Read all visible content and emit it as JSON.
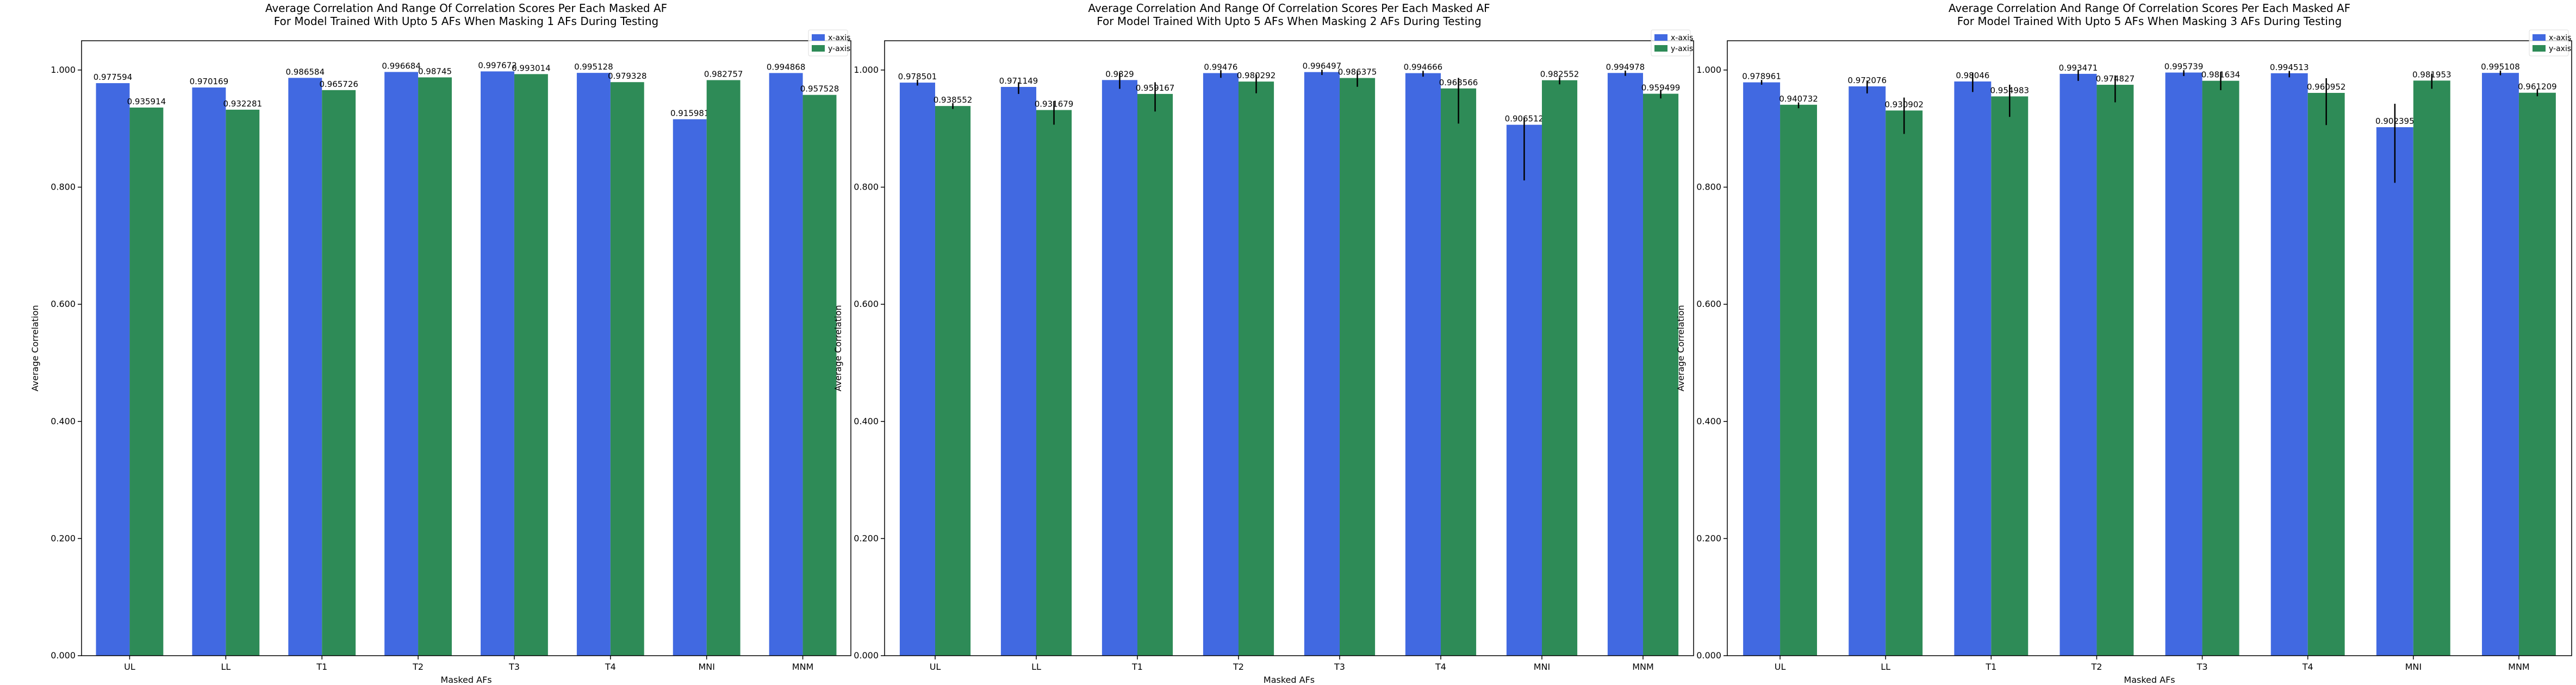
{
  "colors": {
    "x_axis_bar": "#4169e1",
    "y_axis_bar": "#2e8b57",
    "error_bar": "#000000",
    "background": "#ffffff"
  },
  "chart_data": [
    {
      "type": "bar",
      "title": "Average Correlation And Range Of Correlation Scores Per Each Masked AF",
      "subtitle": "For Model Trained With Upto 5 AFs When Masking 1 AFs During Testing",
      "xlabel": "Masked AFs",
      "ylabel": "Average Correlation",
      "ylim": [
        0,
        1.05
      ],
      "yticks": [
        "0.000",
        "0.200",
        "0.400",
        "0.600",
        "0.800",
        "1.000"
      ],
      "grid": false,
      "legend_position": "top-right",
      "categories": [
        "UL",
        "LL",
        "T1",
        "T2",
        "T3",
        "T4",
        "MNI",
        "MNM"
      ],
      "series": [
        {
          "name": "x-axis",
          "color": "#4169e1",
          "values": [
            0.977594,
            0.970169,
            0.986584,
            0.996684,
            0.997672,
            0.995128,
            0.915981,
            0.994868
          ],
          "labels": [
            "0.977594",
            "0.970169",
            "0.986584",
            "0.996684",
            "0.997672",
            "0.995128",
            "0.915981",
            "0.994868"
          ],
          "err_low": [
            0,
            0,
            0,
            0,
            0,
            0,
            0,
            0
          ],
          "err_high": [
            0,
            0,
            0,
            0,
            0,
            0,
            0,
            0
          ]
        },
        {
          "name": "y-axis",
          "color": "#2e8b57",
          "values": [
            0.935914,
            0.932281,
            0.965726,
            0.98745,
            0.993014,
            0.979328,
            0.982757,
            0.957528
          ],
          "labels": [
            "0.935914",
            "0.932281",
            "0.965726",
            "0.98745",
            "0.993014",
            "0.979328",
            "0.982757",
            "0.957528"
          ],
          "err_low": [
            0,
            0,
            0,
            0,
            0,
            0,
            0,
            0
          ],
          "err_high": [
            0,
            0,
            0,
            0,
            0,
            0,
            0,
            0
          ]
        }
      ]
    },
    {
      "type": "bar",
      "title": "Average Correlation And Range Of Correlation Scores Per Each Masked AF",
      "subtitle": "For Model Trained With Upto 5 AFs When Masking 2 AFs During Testing",
      "xlabel": "Masked AFs",
      "ylabel": "Average Correlation",
      "ylim": [
        0,
        1.05
      ],
      "yticks": [
        "0.000",
        "0.200",
        "0.400",
        "0.600",
        "0.800",
        "1.000"
      ],
      "grid": false,
      "legend_position": "top-right",
      "categories": [
        "UL",
        "LL",
        "T1",
        "T2",
        "T3",
        "T4",
        "MNI",
        "MNM"
      ],
      "series": [
        {
          "name": "x-axis",
          "color": "#4169e1",
          "values": [
            0.978501,
            0.971149,
            0.9829,
            0.99476,
            0.996497,
            0.994666,
            0.906512,
            0.994978
          ],
          "labels": [
            "0.978501",
            "0.971149",
            "0.9829",
            "0.99476",
            "0.996497",
            "0.994666",
            "0.906512",
            "0.994978"
          ],
          "err_low": [
            0.005,
            0.012,
            0.015,
            0.008,
            0.005,
            0.006,
            0.095,
            0.005
          ],
          "err_high": [
            0.005,
            0.008,
            0.012,
            0.005,
            0.004,
            0.004,
            0.012,
            0.004
          ]
        },
        {
          "name": "y-axis",
          "color": "#2e8b57",
          "values": [
            0.938552,
            0.931679,
            0.959167,
            0.980292,
            0.986375,
            0.968566,
            0.982552,
            0.959499
          ],
          "labels": [
            "0.938552",
            "0.931679",
            "0.959167",
            "0.980292",
            "0.986375",
            "0.968566",
            "0.982552",
            "0.959499"
          ],
          "err_low": [
            0.005,
            0.025,
            0.03,
            0.02,
            0.015,
            0.06,
            0.007,
            0.008
          ],
          "err_high": [
            0.005,
            0.015,
            0.02,
            0.012,
            0.01,
            0.018,
            0.005,
            0.006
          ]
        }
      ]
    },
    {
      "type": "bar",
      "title": "Average Correlation And Range Of Correlation Scores Per Each Masked AF",
      "subtitle": "For Model Trained With Upto 5 AFs When Masking 3 AFs During Testing",
      "xlabel": "Masked AFs",
      "ylabel": "Average Correlation",
      "ylim": [
        0,
        1.05
      ],
      "yticks": [
        "0.000",
        "0.200",
        "0.400",
        "0.600",
        "0.800",
        "1.000"
      ],
      "grid": false,
      "legend_position": "top-right",
      "categories": [
        "UL",
        "LL",
        "T1",
        "T2",
        "T3",
        "T4",
        "MNI",
        "MNM"
      ],
      "series": [
        {
          "name": "x-axis",
          "color": "#4169e1",
          "values": [
            0.978961,
            0.972076,
            0.98046,
            0.993471,
            0.995739,
            0.994513,
            0.902395,
            0.995108
          ],
          "labels": [
            "0.978961",
            "0.972076",
            "0.98046",
            "0.993471",
            "0.995739",
            "0.994513",
            "0.902395",
            "0.995108"
          ],
          "err_low": [
            0.004,
            0.012,
            0.018,
            0.012,
            0.006,
            0.007,
            0.095,
            0.004
          ],
          "err_high": [
            0.004,
            0.01,
            0.015,
            0.006,
            0.004,
            0.004,
            0.04,
            0.004
          ]
        },
        {
          "name": "y-axis",
          "color": "#2e8b57",
          "values": [
            0.940732,
            0.930902,
            0.954983,
            0.974827,
            0.981634,
            0.960952,
            0.981953,
            0.961209
          ],
          "labels": [
            "0.940732",
            "0.930902",
            "0.954983",
            "0.974827",
            "0.981634",
            "0.960952",
            "0.981953",
            "0.961209"
          ],
          "err_low": [
            0.006,
            0.04,
            0.035,
            0.03,
            0.016,
            0.055,
            0.014,
            0.006
          ],
          "err_high": [
            0.004,
            0.022,
            0.02,
            0.016,
            0.015,
            0.025,
            0.012,
            0.006
          ]
        }
      ]
    }
  ]
}
